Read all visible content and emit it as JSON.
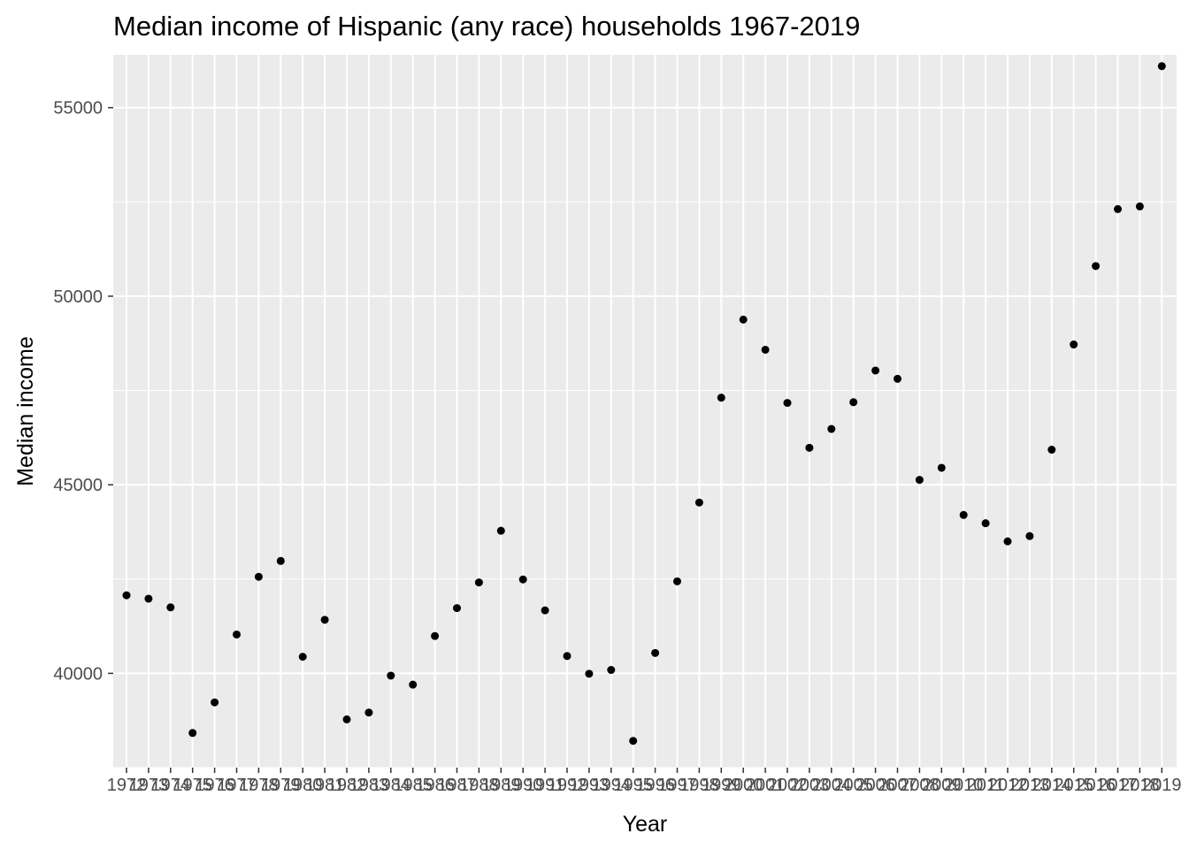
{
  "chart_data": {
    "type": "scatter",
    "title": "Median income of Hispanic (any race) households 1967-2019",
    "xlabel": "Year",
    "ylabel": "Median income",
    "x_categories": [
      "1972",
      "1973",
      "1974",
      "1975",
      "1976",
      "1977",
      "1978",
      "1979",
      "1980",
      "1981",
      "1982",
      "1983",
      "1984",
      "1985",
      "1986",
      "1987",
      "1988",
      "1989",
      "1990",
      "1991",
      "1992",
      "1993",
      "1994",
      "1995",
      "1996",
      "1997",
      "1998",
      "1999",
      "2000",
      "2001",
      "2002",
      "2003",
      "2004",
      "2005",
      "2006",
      "2007",
      "2008",
      "2009",
      "2010",
      "2011",
      "2012",
      "2013",
      "2014",
      "2015",
      "2016",
      "2017",
      "2018",
      "2019"
    ],
    "y_ticks": [
      40000,
      45000,
      50000,
      55000
    ],
    "ylim": [
      37500,
      56400
    ],
    "points": [
      {
        "x": "1972",
        "y": 42070
      },
      {
        "x": "1973",
        "y": 41980
      },
      {
        "x": "1974",
        "y": 41750
      },
      {
        "x": "1975",
        "y": 38420
      },
      {
        "x": "1976",
        "y": 39230
      },
      {
        "x": "1977",
        "y": 41030
      },
      {
        "x": "1978",
        "y": 42560
      },
      {
        "x": "1979",
        "y": 42980
      },
      {
        "x": "1980",
        "y": 40440
      },
      {
        "x": "1981",
        "y": 41420
      },
      {
        "x": "1982",
        "y": 38780
      },
      {
        "x": "1983",
        "y": 38960
      },
      {
        "x": "1984",
        "y": 39940
      },
      {
        "x": "1985",
        "y": 39700
      },
      {
        "x": "1986",
        "y": 40990
      },
      {
        "x": "1987",
        "y": 41730
      },
      {
        "x": "1988",
        "y": 42410
      },
      {
        "x": "1989",
        "y": 43780
      },
      {
        "x": "1990",
        "y": 42490
      },
      {
        "x": "1991",
        "y": 41670
      },
      {
        "x": "1992",
        "y": 40460
      },
      {
        "x": "1993",
        "y": 39990
      },
      {
        "x": "1994",
        "y": 40090
      },
      {
        "x": "1995",
        "y": 38210
      },
      {
        "x": "1996",
        "y": 40540
      },
      {
        "x": "1997",
        "y": 42440
      },
      {
        "x": "1998",
        "y": 44530
      },
      {
        "x": "1999",
        "y": 47310
      },
      {
        "x": "2000",
        "y": 49380
      },
      {
        "x": "2001",
        "y": 48580
      },
      {
        "x": "2002",
        "y": 47170
      },
      {
        "x": "2003",
        "y": 45980
      },
      {
        "x": "2004",
        "y": 46480
      },
      {
        "x": "2005",
        "y": 47190
      },
      {
        "x": "2006",
        "y": 48030
      },
      {
        "x": "2007",
        "y": 47810
      },
      {
        "x": "2008",
        "y": 45130
      },
      {
        "x": "2009",
        "y": 45450
      },
      {
        "x": "2010",
        "y": 44200
      },
      {
        "x": "2011",
        "y": 43980
      },
      {
        "x": "2012",
        "y": 43500
      },
      {
        "x": "2013",
        "y": 43640
      },
      {
        "x": "2014",
        "y": 45930
      },
      {
        "x": "2015",
        "y": 48720
      },
      {
        "x": "2016",
        "y": 50800
      },
      {
        "x": "2017",
        "y": 52310
      },
      {
        "x": "2018",
        "y": 52380
      },
      {
        "x": "2019",
        "y": 56100
      }
    ],
    "grid": true,
    "legend": "none",
    "colors": {
      "panel": "#ebebeb",
      "grid": "#ffffff",
      "point": "#000000",
      "tick_text": "#4d4d4d"
    }
  }
}
